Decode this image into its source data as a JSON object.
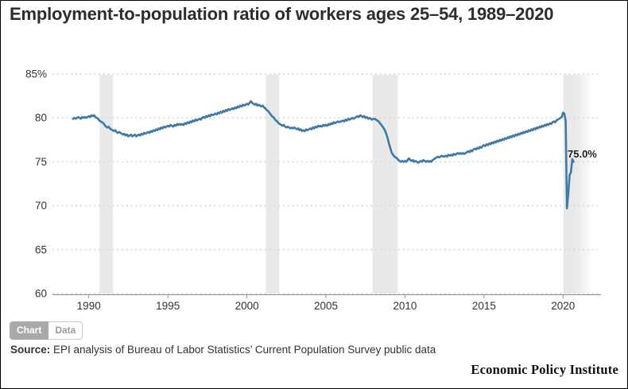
{
  "title": "Employment-to-population ratio of workers ages 25–54, 1989–2020",
  "chart_data": {
    "type": "line",
    "title": "Employment-to-population ratio of workers ages 25–54, 1989–2020",
    "xlabel": "",
    "ylabel": "",
    "unit": "%",
    "xlim": [
      1987.7,
      2022.4
    ],
    "ylim": [
      60,
      85
    ],
    "x_ticks": [
      1990,
      1995,
      2000,
      2005,
      2010,
      2015,
      2020
    ],
    "y_ticks": [
      60,
      65,
      70,
      75,
      80,
      85
    ],
    "y_tick_labels": [
      "60",
      "65",
      "70",
      "75",
      "80",
      "85%"
    ],
    "grid": true,
    "legend_position": "none",
    "line_color": "#3e7aa5",
    "band_color": "#e9e9e9",
    "end_label": "75.0%",
    "last_value": 75.0,
    "recession_bands": [
      {
        "start": 1990.68,
        "end": 1991.52
      },
      {
        "start": 2001.2,
        "end": 2002.05
      },
      {
        "start": 2007.95,
        "end": 2009.55
      },
      {
        "start": 2020.02,
        "end": 2020.78,
        "fade_to": 2021.85
      }
    ],
    "x_start": 1989.0,
    "points_per_year": 12,
    "values": [
      79.9,
      80.0,
      79.9,
      80.0,
      80.1,
      80.0,
      79.9,
      80.1,
      80.0,
      80.1,
      80.0,
      80.1,
      80.2,
      80.1,
      80.3,
      80.2,
      80.3,
      80.1,
      80.0,
      79.9,
      79.7,
      79.6,
      79.5,
      79.4,
      79.2,
      79.0,
      78.9,
      79.0,
      78.8,
      78.7,
      78.6,
      78.5,
      78.6,
      78.4,
      78.3,
      78.4,
      78.3,
      78.2,
      78.1,
      78.2,
      78.0,
      78.1,
      77.9,
      78.0,
      78.1,
      77.9,
      78.0,
      78.1,
      77.9,
      78.0,
      78.1,
      78.0,
      78.2,
      78.1,
      78.3,
      78.2,
      78.3,
      78.4,
      78.3,
      78.5,
      78.4,
      78.6,
      78.5,
      78.7,
      78.6,
      78.8,
      78.7,
      78.9,
      78.8,
      79.0,
      78.9,
      79.0,
      79.1,
      79.0,
      79.2,
      79.1,
      79.0,
      79.2,
      79.1,
      79.3,
      79.2,
      79.3,
      79.2,
      79.3,
      79.2,
      79.4,
      79.3,
      79.5,
      79.4,
      79.6,
      79.5,
      79.7,
      79.6,
      79.8,
      79.7,
      79.8,
      79.9,
      79.8,
      80.0,
      80.1,
      80.0,
      80.2,
      80.1,
      80.3,
      80.2,
      80.4,
      80.3,
      80.4,
      80.5,
      80.4,
      80.6,
      80.5,
      80.7,
      80.6,
      80.8,
      80.7,
      80.9,
      80.8,
      81.0,
      80.9,
      81.0,
      81.1,
      81.0,
      81.2,
      81.1,
      81.3,
      81.2,
      81.4,
      81.3,
      81.5,
      81.4,
      81.5,
      81.6,
      81.5,
      81.7,
      81.9,
      81.7,
      81.6,
      81.5,
      81.6,
      81.4,
      81.5,
      81.4,
      81.3,
      81.4,
      81.2,
      81.1,
      80.9,
      80.8,
      80.6,
      80.4,
      80.2,
      80.1,
      79.9,
      79.7,
      79.6,
      79.4,
      79.3,
      79.2,
      79.1,
      79.2,
      79.0,
      78.9,
      79.0,
      78.9,
      78.8,
      78.9,
      78.8,
      78.9,
      78.8,
      78.7,
      78.8,
      78.6,
      78.7,
      78.5,
      78.6,
      78.5,
      78.7,
      78.6,
      78.7,
      78.8,
      78.7,
      78.9,
      78.8,
      79.0,
      78.9,
      79.1,
      79.0,
      79.1,
      79.0,
      79.2,
      79.1,
      79.2,
      79.1,
      79.3,
      79.2,
      79.4,
      79.3,
      79.5,
      79.4,
      79.5,
      79.6,
      79.5,
      79.6,
      79.6,
      79.7,
      79.6,
      79.8,
      79.7,
      79.9,
      79.8,
      79.9,
      80.0,
      79.9,
      80.0,
      80.1,
      80.2,
      80.1,
      80.3,
      80.2,
      80.1,
      80.2,
      80.0,
      80.1,
      79.9,
      80.0,
      79.9,
      79.8,
      79.9,
      79.9,
      79.8,
      79.7,
      79.6,
      79.4,
      79.2,
      79.0,
      78.8,
      78.5,
      78.1,
      77.6,
      77.0,
      76.5,
      76.0,
      75.8,
      75.6,
      75.5,
      75.4,
      75.2,
      75.1,
      75.0,
      75.1,
      75.0,
      75.1,
      75.0,
      75.2,
      75.4,
      75.2,
      75.1,
      75.2,
      75.0,
      75.1,
      75.0,
      74.9,
      75.0,
      75.1,
      75.0,
      75.2,
      75.1,
      75.0,
      75.1,
      75.0,
      75.1,
      75.0,
      75.2,
      75.3,
      75.4,
      75.5,
      75.6,
      75.5,
      75.6,
      75.7,
      75.6,
      75.6,
      75.7,
      75.6,
      75.8,
      75.7,
      75.8,
      75.7,
      75.9,
      75.8,
      75.9,
      76.0,
      75.9,
      76.0,
      75.9,
      76.0,
      75.9,
      76.0,
      76.1,
      76.2,
      76.1,
      76.3,
      76.2,
      76.4,
      76.5,
      76.4,
      76.6,
      76.5,
      76.7,
      76.6,
      76.8,
      76.9,
      76.8,
      77.0,
      76.9,
      77.1,
      77.0,
      77.2,
      77.1,
      77.3,
      77.2,
      77.4,
      77.3,
      77.5,
      77.4,
      77.6,
      77.5,
      77.7,
      77.6,
      77.8,
      77.7,
      77.9,
      77.8,
      78.0,
      77.9,
      78.1,
      78.0,
      78.2,
      78.1,
      78.3,
      78.2,
      78.4,
      78.3,
      78.5,
      78.4,
      78.6,
      78.5,
      78.7,
      78.6,
      78.8,
      78.7,
      78.9,
      78.8,
      79.0,
      78.9,
      79.1,
      79.0,
      79.2,
      79.1,
      79.3,
      79.2,
      79.4,
      79.3,
      79.5,
      79.6,
      79.5,
      79.7,
      79.8,
      79.9,
      80.0,
      80.1,
      80.6,
      80.5,
      79.6,
      69.7,
      71.4,
      73.5,
      73.8,
      75.3,
      75.0
    ]
  },
  "toolbar": {
    "chart_tab": "Chart",
    "data_tab": "Data"
  },
  "source": {
    "label": "Source:",
    "text": " EPI analysis of Bureau of Labor Statistics’ Current Population Survey public data"
  },
  "branding": "Economic Policy Institute"
}
